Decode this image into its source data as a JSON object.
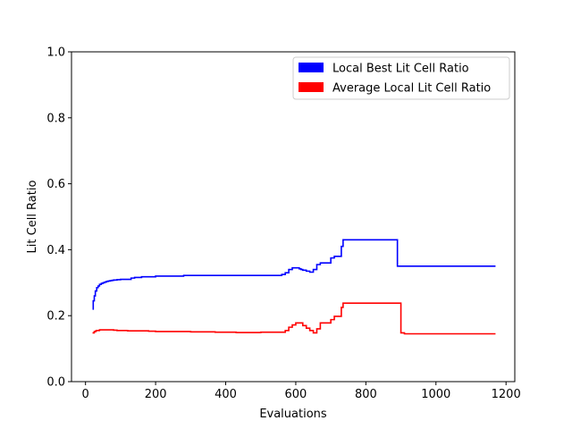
{
  "chart_data": {
    "type": "line",
    "xlabel": "Evaluations",
    "ylabel": "Lit Cell Ratio",
    "xlim": [
      -40,
      1225
    ],
    "ylim": [
      0.0,
      1.0
    ],
    "xticks": [
      "0",
      "200",
      "400",
      "600",
      "800",
      "1000",
      "1200"
    ],
    "yticks": [
      "0.0",
      "0.2",
      "0.4",
      "0.6",
      "0.8",
      "1.0"
    ],
    "grid": false,
    "legend_position": "top-right",
    "step": true,
    "series": [
      {
        "name": "Local Best Lit Cell Ratio",
        "color": "#0000ff",
        "x": [
          20,
          22,
          25,
          28,
          32,
          36,
          40,
          45,
          50,
          55,
          60,
          65,
          70,
          75,
          80,
          90,
          100,
          110,
          120,
          130,
          140,
          160,
          200,
          280,
          400,
          500,
          560,
          570,
          580,
          590,
          600,
          610,
          615,
          620,
          630,
          640,
          650,
          660,
          670,
          700,
          710,
          730,
          735,
          890,
          900,
          1170
        ],
        "y": [
          0.22,
          0.245,
          0.26,
          0.275,
          0.285,
          0.29,
          0.295,
          0.298,
          0.3,
          0.302,
          0.304,
          0.305,
          0.306,
          0.307,
          0.308,
          0.309,
          0.31,
          0.31,
          0.31,
          0.314,
          0.316,
          0.318,
          0.32,
          0.322,
          0.322,
          0.322,
          0.325,
          0.33,
          0.34,
          0.345,
          0.345,
          0.342,
          0.34,
          0.338,
          0.335,
          0.332,
          0.34,
          0.355,
          0.36,
          0.375,
          0.38,
          0.41,
          0.43,
          0.35,
          0.35,
          0.35
        ]
      },
      {
        "name": "Average Local Lit Cell Ratio",
        "color": "#ff0000",
        "x": [
          20,
          25,
          30,
          40,
          60,
          80,
          90,
          120,
          180,
          200,
          300,
          360,
          370,
          420,
          430,
          500,
          570,
          580,
          590,
          600,
          610,
          620,
          630,
          640,
          650,
          660,
          670,
          700,
          710,
          730,
          735,
          890,
          900,
          910,
          1170
        ],
        "y": [
          0.148,
          0.152,
          0.155,
          0.157,
          0.157,
          0.156,
          0.155,
          0.154,
          0.153,
          0.152,
          0.151,
          0.151,
          0.15,
          0.15,
          0.149,
          0.15,
          0.155,
          0.165,
          0.172,
          0.178,
          0.178,
          0.17,
          0.162,
          0.155,
          0.148,
          0.16,
          0.178,
          0.188,
          0.198,
          0.225,
          0.238,
          0.238,
          0.148,
          0.145,
          0.145
        ]
      }
    ]
  }
}
